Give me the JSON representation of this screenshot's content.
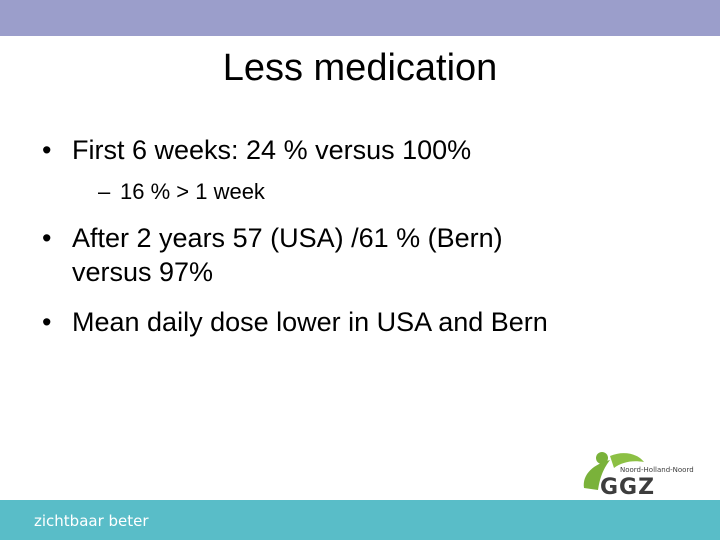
{
  "slide": {
    "title": "Less medication",
    "bullets": [
      {
        "marker": "•",
        "text": "First 6 weeks: 24 % versus 100%"
      },
      {
        "marker": "–",
        "text": "16 % > 1 week"
      },
      {
        "marker": "•",
        "line1": "After 2 years 57 (USA) /61 % (Bern)",
        "line2": "versus 97%"
      },
      {
        "marker": "•",
        "text": "Mean daily dose lower in USA and Bern"
      }
    ]
  },
  "footer": {
    "tagline": "zichtbaar beter",
    "logo": {
      "subtitle": "Noord-Holland-Noord",
      "wordmark": "GGZ",
      "icon": "leaf-figure-icon"
    }
  },
  "colors": {
    "top_band": "#9b9ecb",
    "bottom_band": "#59bdc8",
    "logo_green": "#7ab23a",
    "logo_dark": "#3d3d3d"
  }
}
